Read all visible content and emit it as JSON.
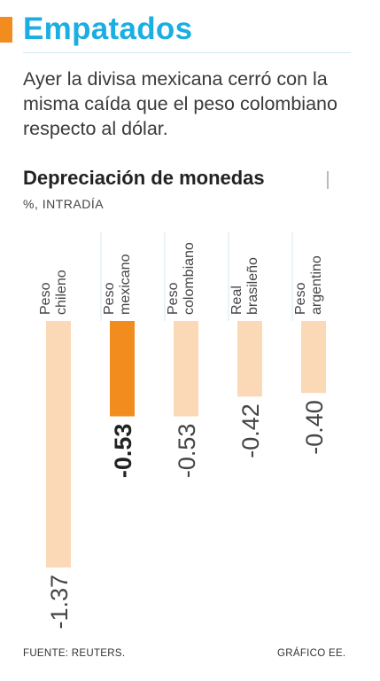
{
  "header": {
    "title": "Empatados",
    "intro": "Ayer la divisa mexicana cerró con la misma caída que el peso colombiano respecto al dólar."
  },
  "chart_data": {
    "type": "bar",
    "title": "Depreciación de monedas",
    "unit_label": "%, INTRADÍA",
    "categories": [
      [
        "Peso",
        "chileno"
      ],
      [
        "Peso",
        "mexicano"
      ],
      [
        "Peso",
        "colombiano"
      ],
      [
        "Real",
        "brasileño"
      ],
      [
        "Peso",
        "argentino"
      ]
    ],
    "values": [
      -1.37,
      -0.53,
      -0.53,
      -0.42,
      -0.4
    ],
    "value_labels": [
      "-1.37",
      "-0.53",
      "-0.53",
      "-0.42",
      "-0.40"
    ],
    "highlight_index": 1,
    "ylim": [
      -1.37,
      0
    ],
    "grid": false,
    "colors": {
      "bar": "#fcd9b6",
      "highlight": "#f28c1e",
      "separator": "#d5e9f2",
      "accent": "#1aaee3"
    }
  },
  "footer": {
    "source": "FUENTE: REUTERS.",
    "credit": "GRÁFICO EE."
  }
}
